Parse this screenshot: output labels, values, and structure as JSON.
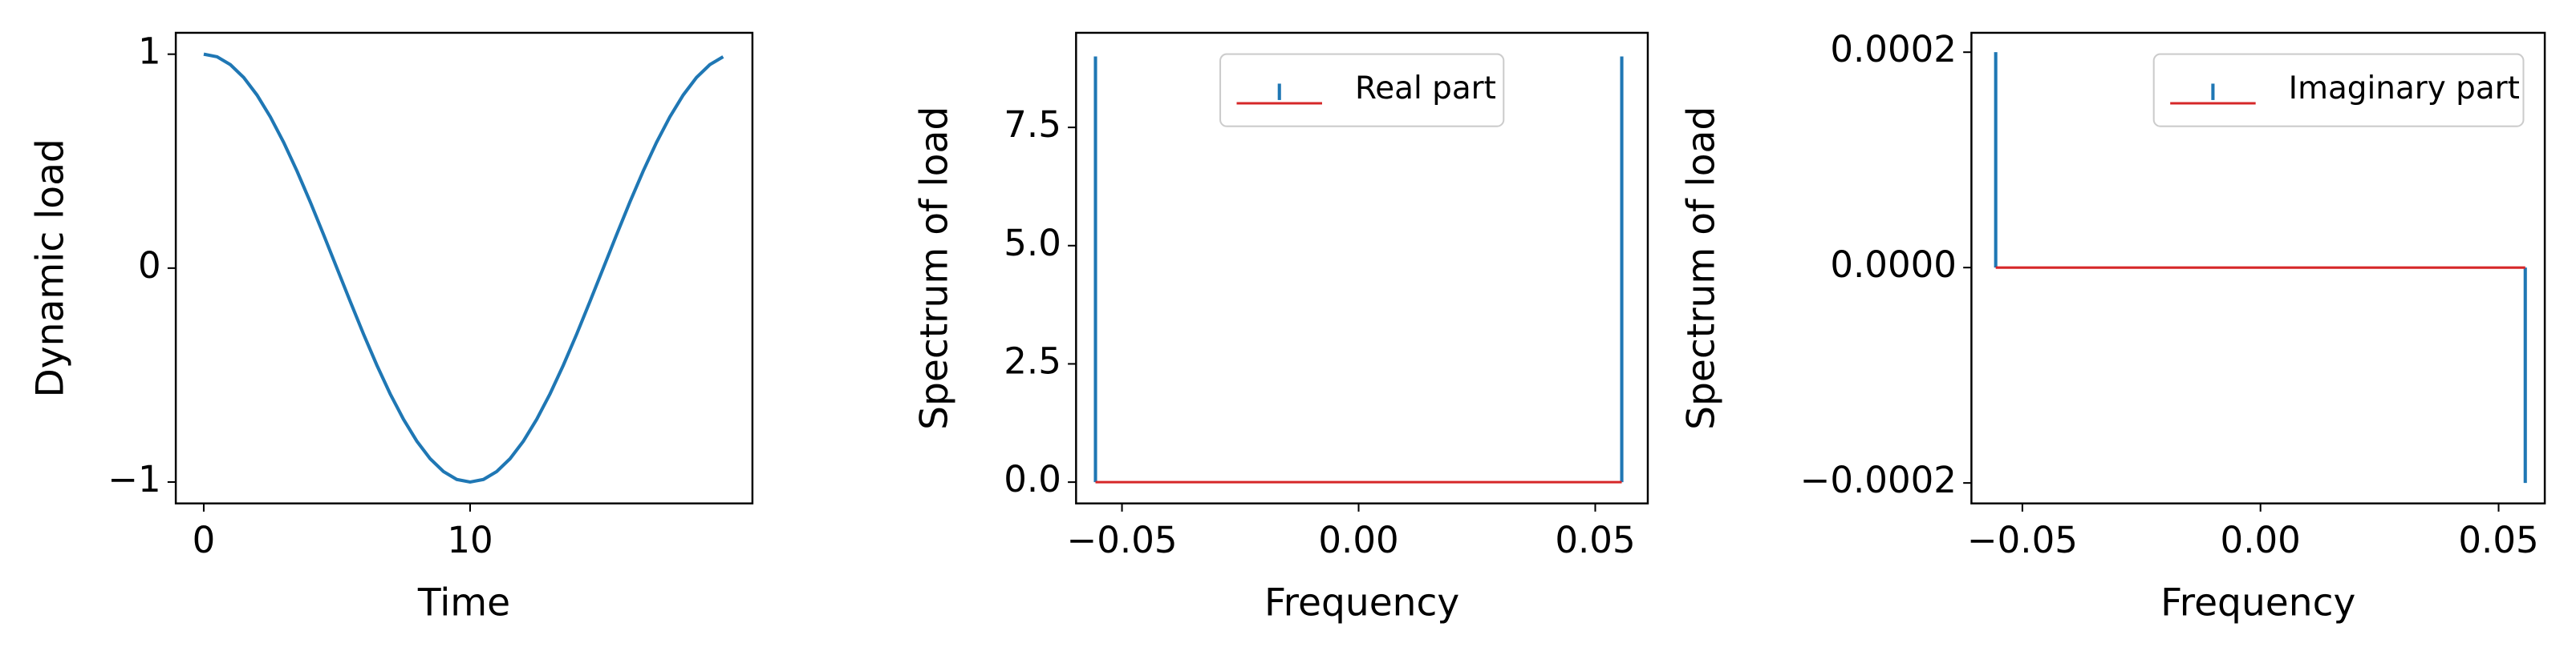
{
  "chart_data": [
    {
      "type": "line",
      "xlabel": "Time",
      "ylabel": "Dynamic load",
      "x": [
        0,
        0.5,
        1,
        1.5,
        2,
        2.5,
        3,
        3.5,
        4,
        4.5,
        5,
        5.5,
        6,
        6.5,
        7,
        7.5,
        8,
        8.5,
        9,
        9.5,
        10,
        10.5,
        11,
        11.5,
        12,
        12.5,
        13,
        13.5,
        14,
        14.5,
        15,
        15.5,
        16,
        16.5,
        17,
        17.5,
        18,
        18.5,
        19,
        19.5
      ],
      "series": [
        {
          "color": "#1f77b4",
          "values": [
            1,
            0.988,
            0.951,
            0.891,
            0.809,
            0.707,
            0.588,
            0.454,
            0.309,
            0.156,
            0,
            -0.156,
            -0.309,
            -0.454,
            -0.588,
            -0.707,
            -0.809,
            -0.891,
            -0.951,
            -0.988,
            -1,
            -0.988,
            -0.951,
            -0.891,
            -0.809,
            -0.707,
            -0.588,
            -0.454,
            -0.309,
            -0.156,
            0,
            0.156,
            0.309,
            0.454,
            0.588,
            0.707,
            0.809,
            0.891,
            0.951,
            0.988
          ]
        }
      ],
      "xlim": [
        -1.05,
        20.6
      ],
      "ylim": [
        -1.1,
        1.1
      ],
      "xticks": [
        0,
        10
      ],
      "yticks": [
        {
          "value": -1,
          "label": "−1"
        },
        0,
        1
      ]
    },
    {
      "type": "stem",
      "xlabel": "Frequency",
      "ylabel": "Spectrum of load",
      "x": [
        -0.0556,
        0.0556
      ],
      "series": [
        {
          "name": "Real part",
          "color": "#1f77b4",
          "baseline_color": "#d62728",
          "values": [
            9,
            9
          ]
        }
      ],
      "legend": "upper center",
      "xlim": [
        -0.0597,
        0.0611
      ],
      "ylim": [
        -0.45,
        9.5
      ],
      "xticks": [
        {
          "value": -0.05,
          "label": "−0.05"
        },
        {
          "value": 0,
          "label": "0.00"
        },
        0.05
      ],
      "yticks": [
        {
          "value": 0,
          "label": "0.0"
        },
        2.5,
        {
          "value": 5,
          "label": "5.0"
        },
        7.5
      ]
    },
    {
      "type": "stem",
      "xlabel": "Frequency",
      "ylabel": "Spectrum of load",
      "x": [
        -0.0556,
        0.0556
      ],
      "series": [
        {
          "name": "Imaginary part",
          "color": "#1f77b4",
          "baseline_color": "#d62728",
          "values": [
            0.0002,
            -0.0002
          ]
        }
      ],
      "legend": "upper right",
      "xlim": [
        -0.0607,
        0.0597
      ],
      "ylim": [
        -0.000219,
        0.000218
      ],
      "xticks": [
        {
          "value": -0.05,
          "label": "−0.05"
        },
        {
          "value": 0,
          "label": "0.00"
        },
        0.05
      ],
      "yticks": [
        {
          "value": -0.0002,
          "label": "−0.0002"
        },
        {
          "value": 0,
          "label": "0.0000"
        },
        0.0002
      ]
    }
  ]
}
